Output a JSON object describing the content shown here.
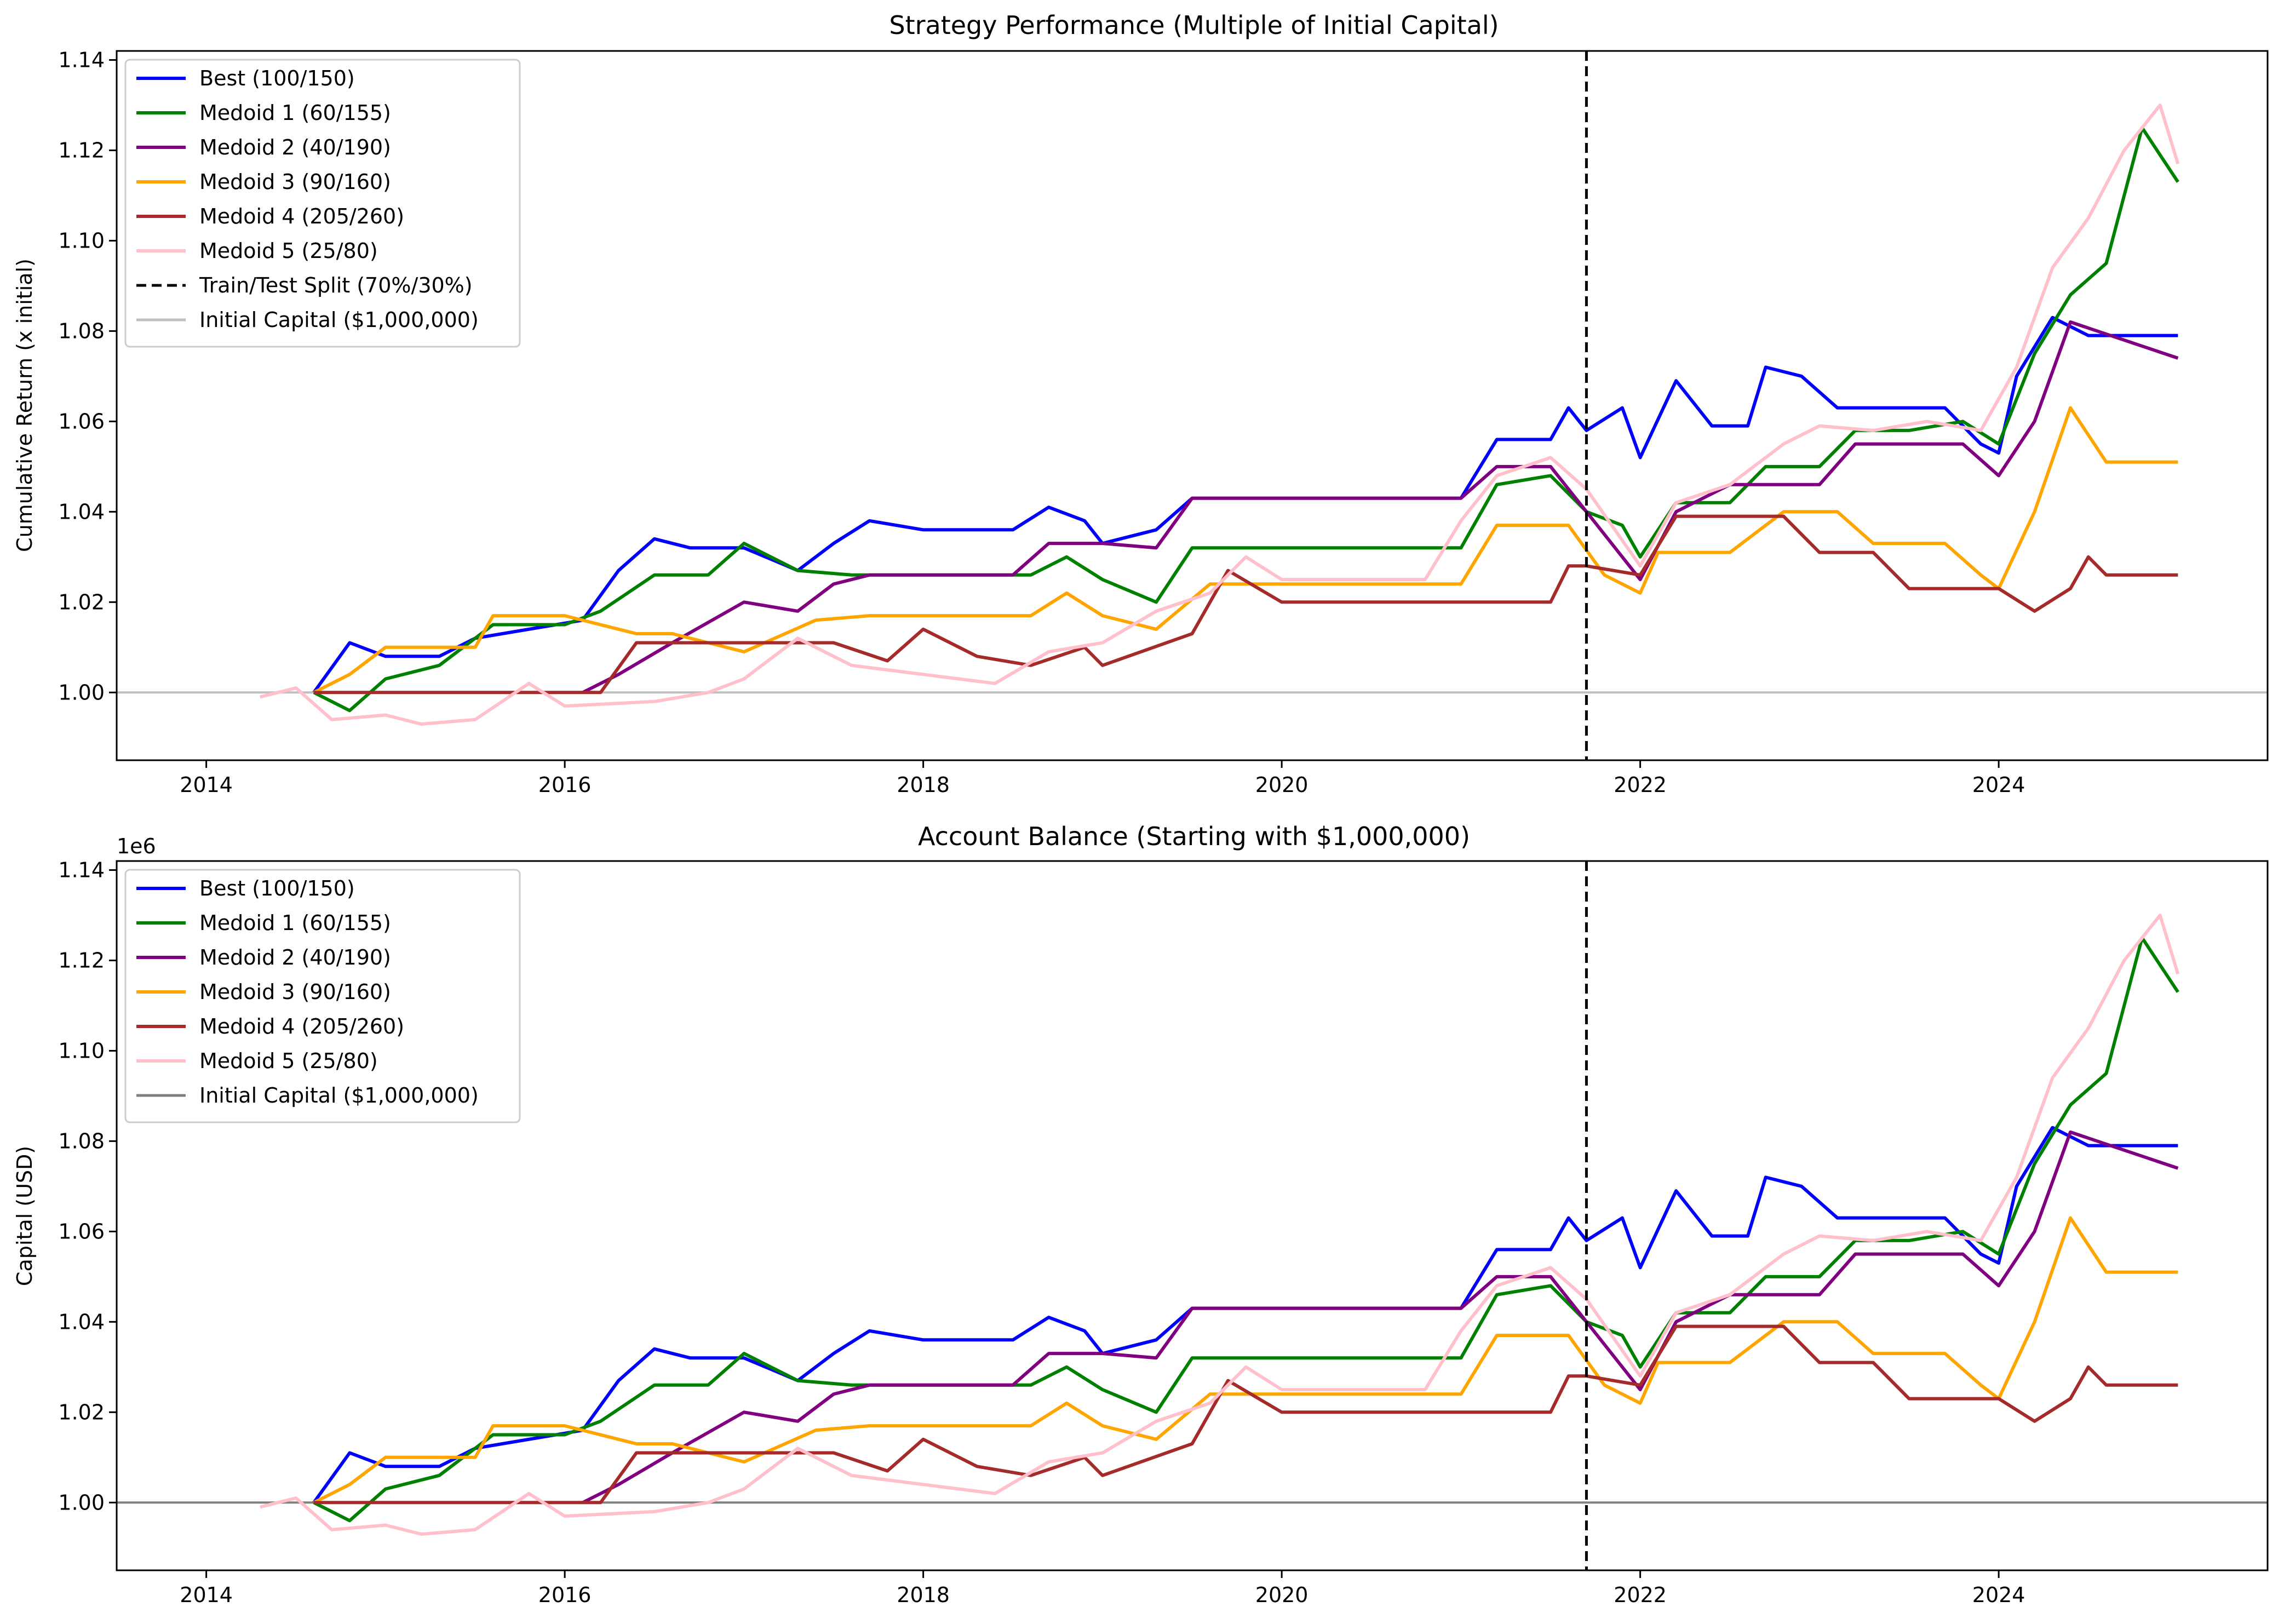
{
  "chart_data": [
    {
      "type": "line",
      "title": "Strategy Performance (Multiple of Initial Capital)",
      "xlabel": "",
      "ylabel": "Cumulative Return (x initial)",
      "y_offset_label": "",
      "xlim": [
        2013.5,
        2025.5
      ],
      "ylim": [
        0.985,
        1.142
      ],
      "x_ticks": [
        2014,
        2016,
        2018,
        2020,
        2022,
        2024
      ],
      "x_tick_labels": [
        "2014",
        "2016",
        "2018",
        "2020",
        "2022",
        "2024"
      ],
      "y_ticks": [
        1.0,
        1.02,
        1.04,
        1.06,
        1.08,
        1.1,
        1.12,
        1.14
      ],
      "y_tick_labels": [
        "1.00",
        "1.02",
        "1.04",
        "1.06",
        "1.08",
        "1.10",
        "1.12",
        "1.14"
      ],
      "grid": false,
      "legend_position": "upper-left",
      "split_x": 2021.7,
      "split_label": "Train/Test Split (70%/30%)",
      "baseline_y": 1.0,
      "baseline_label": "Initial Capital ($1,000,000)",
      "baseline_color": "#bfbfbf",
      "series": [
        {
          "name": "Best (100/150)",
          "color": "#0000ff",
          "x": [
            2014.6,
            2014.8,
            2015.0,
            2015.3,
            2015.5,
            2016.1,
            2016.3,
            2016.5,
            2016.7,
            2017.0,
            2017.3,
            2017.5,
            2017.7,
            2018.0,
            2018.5,
            2018.7,
            2018.9,
            2019.0,
            2019.3,
            2019.5,
            2020.0,
            2020.5,
            2021.0,
            2021.2,
            2021.5,
            2021.6,
            2021.7,
            2021.9,
            2022.0,
            2022.2,
            2022.4,
            2022.6,
            2022.7,
            2022.9,
            2023.1,
            2023.4,
            2023.7,
            2023.9,
            2024.0,
            2024.1,
            2024.3,
            2024.5,
            2025.0
          ],
          "y": [
            1.0,
            1.011,
            1.008,
            1.008,
            1.012,
            1.016,
            1.027,
            1.034,
            1.032,
            1.032,
            1.027,
            1.033,
            1.038,
            1.036,
            1.036,
            1.041,
            1.038,
            1.033,
            1.036,
            1.043,
            1.043,
            1.043,
            1.043,
            1.056,
            1.056,
            1.063,
            1.058,
            1.063,
            1.052,
            1.069,
            1.059,
            1.059,
            1.072,
            1.07,
            1.063,
            1.063,
            1.063,
            1.055,
            1.053,
            1.07,
            1.083,
            1.079,
            1.079
          ]
        },
        {
          "name": "Medoid 1 (60/155)",
          "color": "#008000",
          "x": [
            2014.6,
            2014.8,
            2015.0,
            2015.3,
            2015.6,
            2016.0,
            2016.2,
            2016.5,
            2016.8,
            2017.0,
            2017.3,
            2017.6,
            2018.0,
            2018.6,
            2018.8,
            2019.0,
            2019.3,
            2019.5,
            2020.0,
            2021.0,
            2021.2,
            2021.5,
            2021.7,
            2021.9,
            2022.0,
            2022.2,
            2022.5,
            2022.7,
            2023.0,
            2023.2,
            2023.5,
            2023.8,
            2024.0,
            2024.2,
            2024.4,
            2024.6,
            2024.8,
            2025.0
          ],
          "y": [
            1.0,
            0.996,
            1.003,
            1.006,
            1.015,
            1.015,
            1.018,
            1.026,
            1.026,
            1.033,
            1.027,
            1.026,
            1.026,
            1.026,
            1.03,
            1.025,
            1.02,
            1.032,
            1.032,
            1.032,
            1.046,
            1.048,
            1.04,
            1.037,
            1.03,
            1.042,
            1.042,
            1.05,
            1.05,
            1.058,
            1.058,
            1.06,
            1.055,
            1.075,
            1.088,
            1.095,
            1.125,
            1.113
          ]
        },
        {
          "name": "Medoid 2 (40/190)",
          "color": "#800080",
          "x": [
            2016.1,
            2016.3,
            2016.6,
            2017.0,
            2017.3,
            2017.5,
            2017.7,
            2018.0,
            2018.5,
            2018.7,
            2019.0,
            2019.3,
            2019.5,
            2020.0,
            2021.0,
            2021.2,
            2021.5,
            2021.7,
            2022.0,
            2022.2,
            2022.5,
            2022.8,
            2023.0,
            2023.2,
            2023.5,
            2023.8,
            2024.0,
            2024.2,
            2024.4,
            2025.0
          ],
          "y": [
            1.0,
            1.004,
            1.011,
            1.02,
            1.018,
            1.024,
            1.026,
            1.026,
            1.026,
            1.033,
            1.033,
            1.032,
            1.043,
            1.043,
            1.043,
            1.05,
            1.05,
            1.04,
            1.025,
            1.04,
            1.046,
            1.046,
            1.046,
            1.055,
            1.055,
            1.055,
            1.048,
            1.06,
            1.082,
            1.074
          ]
        },
        {
          "name": "Medoid 3 (90/160)",
          "color": "#ffa500",
          "x": [
            2014.6,
            2014.8,
            2015.0,
            2015.5,
            2015.6,
            2016.0,
            2016.4,
            2016.6,
            2017.0,
            2017.4,
            2017.7,
            2018.0,
            2018.6,
            2018.8,
            2019.0,
            2019.3,
            2019.6,
            2020.0,
            2021.0,
            2021.2,
            2021.6,
            2021.8,
            2022.0,
            2022.1,
            2022.5,
            2022.8,
            2023.1,
            2023.3,
            2023.7,
            2023.9,
            2024.0,
            2024.2,
            2024.4,
            2024.6,
            2025.0
          ],
          "y": [
            1.0,
            1.004,
            1.01,
            1.01,
            1.017,
            1.017,
            1.013,
            1.013,
            1.009,
            1.016,
            1.017,
            1.017,
            1.017,
            1.022,
            1.017,
            1.014,
            1.024,
            1.024,
            1.024,
            1.037,
            1.037,
            1.026,
            1.022,
            1.031,
            1.031,
            1.04,
            1.04,
            1.033,
            1.033,
            1.026,
            1.023,
            1.04,
            1.063,
            1.051,
            1.051
          ]
        },
        {
          "name": "Medoid 4 (205/260)",
          "color": "#a52a2a",
          "x": [
            2014.6,
            2016.2,
            2016.4,
            2016.6,
            2017.0,
            2017.5,
            2017.8,
            2018.0,
            2018.3,
            2018.6,
            2018.9,
            2019.0,
            2019.5,
            2019.7,
            2020.0,
            2021.0,
            2021.5,
            2021.6,
            2021.7,
            2022.0,
            2022.2,
            2022.5,
            2022.8,
            2023.0,
            2023.3,
            2023.5,
            2024.0,
            2024.2,
            2024.4,
            2024.5,
            2024.6,
            2025.0
          ],
          "y": [
            1.0,
            1.0,
            1.011,
            1.011,
            1.011,
            1.011,
            1.007,
            1.014,
            1.008,
            1.006,
            1.01,
            1.006,
            1.013,
            1.027,
            1.02,
            1.02,
            1.02,
            1.028,
            1.028,
            1.026,
            1.039,
            1.039,
            1.039,
            1.031,
            1.031,
            1.023,
            1.023,
            1.018,
            1.023,
            1.03,
            1.026,
            1.026
          ]
        },
        {
          "name": "Medoid 5 (25/80)",
          "color": "#ffc0cb",
          "x": [
            2014.3,
            2014.5,
            2014.7,
            2015.0,
            2015.2,
            2015.5,
            2015.8,
            2016.0,
            2016.5,
            2016.8,
            2017.0,
            2017.3,
            2017.6,
            2018.0,
            2018.4,
            2018.7,
            2019.0,
            2019.3,
            2019.6,
            2019.8,
            2020.0,
            2020.5,
            2020.8,
            2021.0,
            2021.2,
            2021.5,
            2021.7,
            2022.0,
            2022.2,
            2022.5,
            2022.8,
            2023.0,
            2023.3,
            2023.6,
            2023.9,
            2024.1,
            2024.3,
            2024.5,
            2024.7,
            2024.9,
            2025.0
          ],
          "y": [
            0.999,
            1.001,
            0.994,
            0.995,
            0.993,
            0.994,
            1.002,
            0.997,
            0.998,
            1.0,
            1.003,
            1.012,
            1.006,
            1.004,
            1.002,
            1.009,
            1.011,
            1.018,
            1.022,
            1.03,
            1.025,
            1.025,
            1.025,
            1.038,
            1.048,
            1.052,
            1.045,
            1.028,
            1.042,
            1.046,
            1.055,
            1.059,
            1.058,
            1.06,
            1.058,
            1.072,
            1.094,
            1.105,
            1.12,
            1.13,
            1.117
          ]
        }
      ]
    },
    {
      "type": "line",
      "title": "Account Balance (Starting with $1,000,000)",
      "xlabel": "",
      "ylabel": "Capital (USD)",
      "y_offset_label": "1e6",
      "xlim": [
        2013.5,
        2025.5
      ],
      "ylim": [
        0.985,
        1.142
      ],
      "x_ticks": [
        2014,
        2016,
        2018,
        2020,
        2022,
        2024
      ],
      "x_tick_labels": [
        "2014",
        "2016",
        "2018",
        "2020",
        "2022",
        "2024"
      ],
      "y_ticks": [
        1.0,
        1.02,
        1.04,
        1.06,
        1.08,
        1.1,
        1.12,
        1.14
      ],
      "y_tick_labels": [
        "1.00",
        "1.02",
        "1.04",
        "1.06",
        "1.08",
        "1.10",
        "1.12",
        "1.14"
      ],
      "grid": false,
      "legend_position": "upper-left",
      "split_x": 2021.7,
      "split_label": "",
      "baseline_y": 1.0,
      "baseline_label": "Initial Capital ($1,000,000)",
      "baseline_color": "#808080",
      "series_same_as_first": true
    }
  ]
}
